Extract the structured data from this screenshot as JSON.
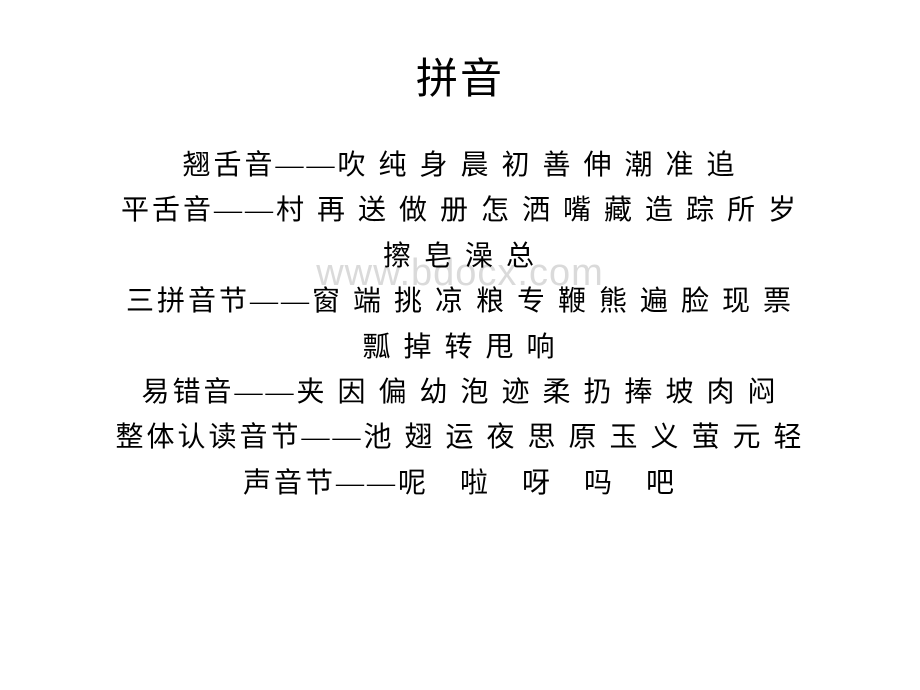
{
  "document": {
    "title": "拼音",
    "watermark": "www.bdocx.com",
    "title_fontsize": 42,
    "body_fontsize": 28,
    "title_color": "#000000",
    "body_color": "#000000",
    "background_color": "#ffffff",
    "watermark_color": "rgba(150,150,150,0.35)",
    "font_family": "SimSun",
    "lines": [
      "翘舌音——吹 纯 身 晨 初 善 伸 潮 准 追",
      "平舌音——村 再 送 做 册 怎 洒 嘴 藏 造 踪 所 岁",
      "擦 皂 澡 总",
      "三拼音节——窗 端 挑 凉 粮 专 鞭 熊 遍 脸 现 票",
      "瓢 掉 转 甩 响",
      "易错音——夹 因 偏 幼 泡 迹 柔 扔 捧 坡 肉 闷",
      "整体认读音节——池 翅 运 夜 思 原 玉 义 萤 元 轻",
      "声音节——呢　啦　呀　吗　吧"
    ]
  }
}
